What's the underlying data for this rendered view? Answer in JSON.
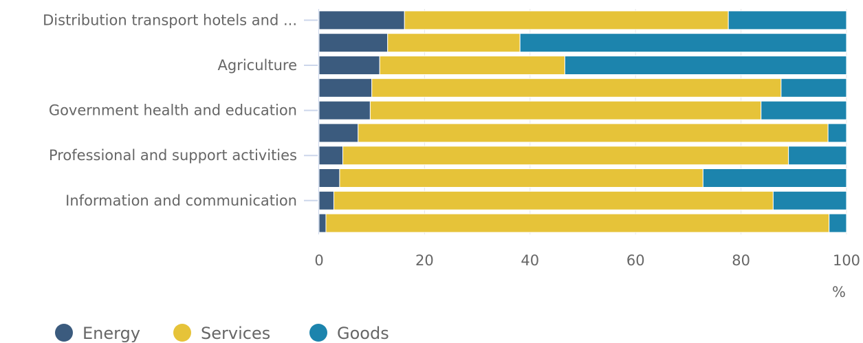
{
  "chart_data": {
    "type": "bar",
    "orientation": "horizontal",
    "stacked": true,
    "categories": [
      "Distribution transport hotels and ...",
      "",
      "Agriculture",
      "",
      "Government health and education",
      "",
      "Professional and support activities",
      "",
      "Information and communication",
      ""
    ],
    "series": [
      {
        "name": "Energy",
        "color": "#3b5b7e",
        "values": [
          16.2,
          13.0,
          11.5,
          10.0,
          9.7,
          7.4,
          4.5,
          3.9,
          2.8,
          1.3
        ]
      },
      {
        "name": "Services",
        "color": "#e6c339",
        "values": [
          61.4,
          25.1,
          35.1,
          77.6,
          74.1,
          89.1,
          84.5,
          68.9,
          83.3,
          95.4
        ]
      },
      {
        "name": "Goods",
        "color": "#1c84ad",
        "values": [
          22.4,
          61.9,
          53.4,
          12.4,
          16.2,
          3.5,
          11.0,
          27.2,
          13.9,
          3.3
        ]
      }
    ],
    "xlim": [
      0,
      100
    ],
    "xticks": [
      "0",
      "20",
      "40",
      "60",
      "80",
      "100"
    ],
    "unit": "%",
    "grid": true,
    "legend_position": "bottom-left"
  }
}
